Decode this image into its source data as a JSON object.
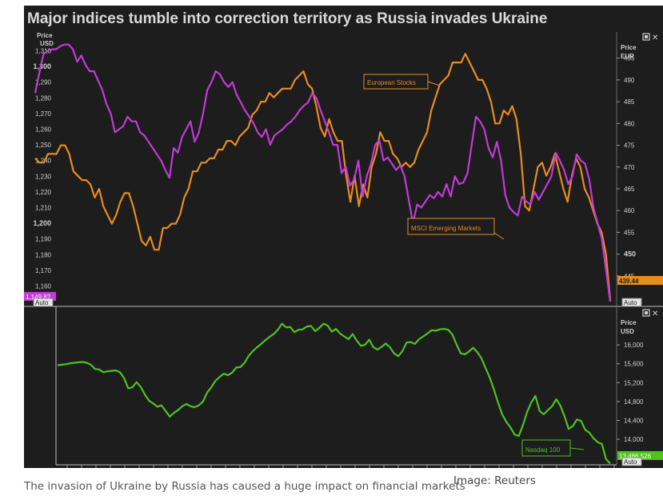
{
  "caption": "The invasion of Ukraine by Russia has caused a huge impact on financial markets",
  "credit": "Image: Reuters",
  "colors": {
    "panel_bg": "#1d1d1d",
    "axis_text": "#d0d0d0",
    "msci_purple": "#c23ad8",
    "europe_orange": "#e88c1e",
    "nasdaq_green": "#4ec31e"
  },
  "icons": [
    "maximize-icon",
    "close-icon"
  ],
  "chart_data": [
    {
      "type": "line",
      "title": "Major indices tumble into correction territory as Russia invades Ukraine",
      "axis_buttons": {
        "left": "Auto",
        "right": "Auto"
      },
      "left_axis": {
        "label": "Price USD",
        "ticks": [
          "1,310",
          "1,300",
          "1,290",
          "1,280",
          "1,270",
          "1,260",
          "1,250",
          "1,240",
          "1,230",
          "1,220",
          "1,210",
          "1,200",
          "1,190",
          "1,180",
          "1,170",
          "1,160"
        ],
        "range": [
          1147,
          1322
        ]
      },
      "right_axis": {
        "label": "Price EUR",
        "ticks": [
          "495",
          "490",
          "485",
          "480",
          "475",
          "470",
          "465",
          "460",
          "455",
          "450",
          "445"
        ],
        "range": [
          438,
          501
        ]
      },
      "series": [
        {
          "name": "MSCI Emerging Markets",
          "axis": "left",
          "last_value_label": "1,149.82",
          "values": [
            1283,
            1296,
            1308,
            1310,
            1311,
            1311,
            1313,
            1314,
            1314,
            1311,
            1303,
            1307,
            1301,
            1297,
            1297,
            1291,
            1285,
            1276,
            1270,
            1258,
            1260,
            1262,
            1268,
            1265,
            1265,
            1258,
            1256,
            1252,
            1248,
            1244,
            1240,
            1234,
            1229,
            1248,
            1245,
            1255,
            1260,
            1265,
            1252,
            1258,
            1270,
            1285,
            1290,
            1297,
            1295,
            1290,
            1287,
            1290,
            1282,
            1277,
            1272,
            1268,
            1264,
            1258,
            1255,
            1260,
            1250,
            1256,
            1258,
            1260,
            1263,
            1265,
            1268,
            1272,
            1275,
            1277,
            1283,
            1280,
            1272,
            1265,
            1258,
            1250,
            1250,
            1232,
            1236,
            1224,
            1228,
            1240,
            1217,
            1230,
            1238,
            1250,
            1253,
            1240,
            1242,
            1238,
            1234,
            1237,
            1230,
            1215,
            1200,
            1212,
            1210,
            1214,
            1218,
            1216,
            1220,
            1217,
            1225,
            1217,
            1230,
            1225,
            1226,
            1232,
            1250,
            1268,
            1265,
            1260,
            1248,
            1242,
            1252,
            1240,
            1218,
            1210,
            1207,
            1205,
            1217,
            1214,
            1212,
            1220,
            1215,
            1220,
            1225,
            1230,
            1245,
            1240,
            1234,
            1225,
            1230,
            1244,
            1240,
            1238,
            1228,
            1210,
            1200,
            1190,
            1170,
            1150
          ]
        },
        {
          "name": "European Stocks",
          "axis": "right",
          "last_value_label": "439.44",
          "values": [
            472,
            471,
            471,
            473,
            473,
            473,
            475,
            475,
            473,
            469,
            468,
            467,
            467,
            466,
            463,
            465,
            461,
            459,
            457,
            459,
            462,
            464,
            464,
            461,
            457,
            453,
            452,
            454,
            451,
            451,
            456,
            456,
            457,
            457,
            459,
            463,
            465,
            469,
            469,
            471,
            471,
            472,
            472,
            474,
            474,
            476,
            476,
            475,
            477,
            478,
            479,
            482,
            483,
            485,
            485,
            487,
            486,
            487,
            488,
            488,
            488,
            490,
            491,
            492,
            489,
            488,
            484,
            479,
            477,
            481,
            478,
            476,
            476,
            468,
            462,
            468,
            461,
            466,
            463,
            470,
            473,
            478,
            476,
            476,
            473,
            472,
            470,
            471,
            470,
            471,
            474,
            476,
            478,
            483,
            486,
            489,
            490,
            491,
            494,
            494,
            494,
            496,
            494,
            492,
            490,
            490,
            488,
            485,
            480,
            480,
            483,
            482,
            484,
            481,
            473,
            461,
            460,
            465,
            470,
            471,
            468,
            470,
            473,
            469,
            465,
            462,
            468,
            472,
            470,
            465,
            463,
            460,
            457,
            455,
            450,
            439.44
          ]
        },
        {
          "name": "Nasdaq 100",
          "axis": "nasdaq",
          "last_value_label": "13,486.526",
          "values": [
            15570,
            15580,
            15590,
            15610,
            15620,
            15630,
            15640,
            15620,
            15580,
            15490,
            15480,
            15420,
            15440,
            15450,
            15460,
            15420,
            15300,
            15080,
            15100,
            15210,
            15110,
            14950,
            14820,
            14760,
            14690,
            14720,
            14600,
            14480,
            14560,
            14620,
            14700,
            14750,
            14700,
            14680,
            14720,
            14800,
            14990,
            15100,
            15240,
            15320,
            15390,
            15360,
            15410,
            15520,
            15530,
            15620,
            15770,
            15870,
            15950,
            16020,
            16100,
            16170,
            16230,
            16320,
            16450,
            16370,
            16380,
            16270,
            16320,
            16330,
            16390,
            16400,
            16290,
            16360,
            16450,
            16410,
            16280,
            16340,
            16240,
            16180,
            16120,
            16230,
            16090,
            15980,
            16000,
            16110,
            15950,
            15900,
            15960,
            16030,
            15950,
            15820,
            15760,
            15870,
            16050,
            16060,
            16020,
            16120,
            16180,
            16240,
            16310,
            16300,
            16330,
            16340,
            16320,
            16220,
            16010,
            15820,
            15800,
            15860,
            15940,
            15850,
            15720,
            15510,
            15310,
            15060,
            14780,
            14530,
            14370,
            14250,
            14100,
            14070,
            14300,
            14580,
            14780,
            14920,
            14600,
            14530,
            14620,
            14700,
            14850,
            14710,
            14490,
            14220,
            14280,
            14420,
            14390,
            14200,
            14140,
            14020,
            13940,
            13900,
            13580,
            13486
          ]
        }
      ],
      "nasdaq_axis": {
        "label": "Price USD",
        "ticks": [
          "16,000",
          "15,600",
          "15,200",
          "14,800",
          "14,400",
          "14,000"
        ],
        "range": [
          13460,
          16680
        ]
      },
      "annotations": [
        "European Stocks",
        "MSCI Emerging Markets",
        "Nasdaq 100"
      ]
    }
  ]
}
